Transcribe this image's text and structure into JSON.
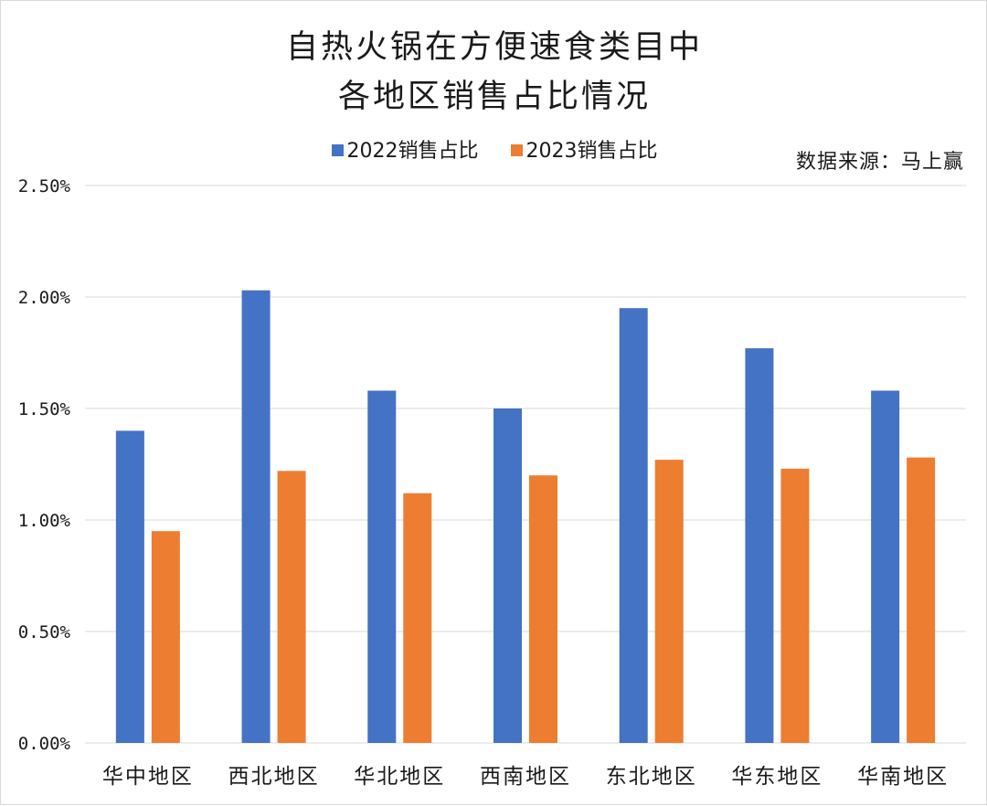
{
  "chart": {
    "title_line1": "自热火锅在方便速食类目中",
    "title_line2": "各地区销售占比情况",
    "source": "数据来源：马上赢"
  },
  "colors": {
    "series_2022": "#4472C4",
    "series_2023": "#ED7D31",
    "grid": "#d9d9d9",
    "text": "#1a1a1a"
  },
  "chart_data": {
    "type": "bar",
    "title": "自热火锅在方便速食类目中各地区销售占比情况",
    "categories": [
      "华中地区",
      "西北地区",
      "华北地区",
      "西南地区",
      "东北地区",
      "华东地区",
      "华南地区"
    ],
    "series": [
      {
        "name": "2022销售占比",
        "values": [
          1.4,
          2.03,
          1.58,
          1.5,
          1.95,
          1.77,
          1.58
        ]
      },
      {
        "name": "2023销售占比",
        "values": [
          0.95,
          1.22,
          1.12,
          1.2,
          1.27,
          1.23,
          1.28
        ]
      }
    ],
    "y_ticks": [
      "0.00%",
      "0.50%",
      "1.00%",
      "1.50%",
      "2.00%",
      "2.50%"
    ],
    "ylim": [
      0,
      2.5
    ],
    "y_unit": "%",
    "grid": true,
    "legend_position": "top"
  }
}
